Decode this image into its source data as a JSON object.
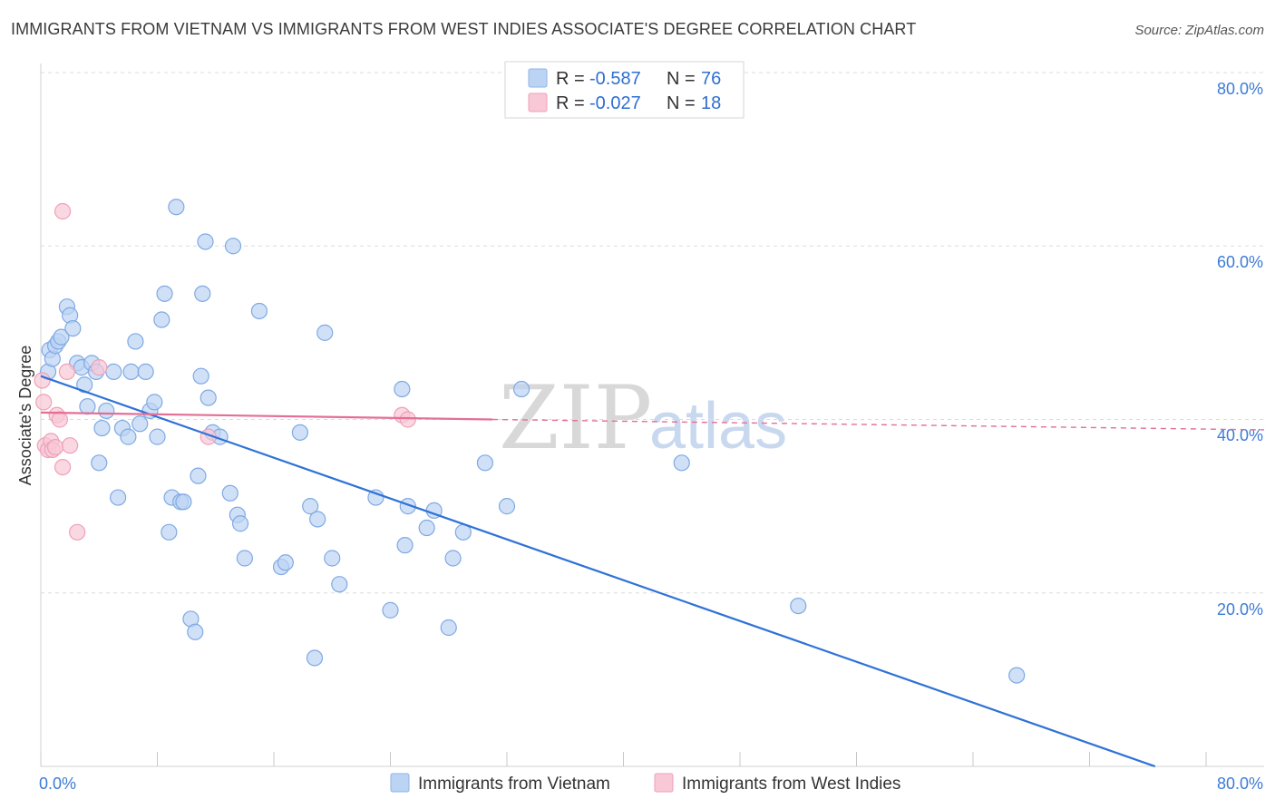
{
  "header": {
    "title": "IMMIGRANTS FROM VIETNAM VS IMMIGRANTS FROM WEST INDIES ASSOCIATE'S DEGREE CORRELATION CHART",
    "source": "Source: ZipAtlas.com"
  },
  "watermark": {
    "zip": "ZIP",
    "atlas": "atlas"
  },
  "legend": {
    "rows": [
      {
        "r_label": "R =",
        "r_value": "-0.587",
        "n_label": "N =",
        "n_value": "76",
        "color": "#a9c8f0"
      },
      {
        "r_label": "R =",
        "r_value": "-0.027",
        "n_label": "N =",
        "n_value": "18",
        "color": "#f6b8c9"
      }
    ]
  },
  "bottom_legend": [
    "Immigrants from Vietnam",
    "Immigrants from West Indies"
  ],
  "chart_data": {
    "type": "scatter",
    "title": "IMMIGRANTS FROM VIETNAM VS IMMIGRANTS FROM WEST INDIES ASSOCIATE'S DEGREE CORRELATION CHART",
    "xlabel": "",
    "ylabel": "Associate's Degree",
    "xlim": [
      0,
      80
    ],
    "ylim": [
      0,
      80
    ],
    "x_tick_labels": [
      "0.0%",
      "80.0%"
    ],
    "y_tick_values": [
      20,
      40,
      60,
      80
    ],
    "y_tick_labels": [
      "20.0%",
      "40.0%",
      "60.0%",
      "80.0%"
    ],
    "colors": {
      "vietnam": "#2f72d6",
      "west_indies": "#e36f97",
      "vietnam_fill": "#bcd4f3",
      "west_indies_fill": "#f8c8d6"
    },
    "series": [
      {
        "name": "Immigrants from Vietnam",
        "R": -0.587,
        "N": 76,
        "trend": {
          "x": [
            0,
            76.5
          ],
          "y": [
            45.0,
            0.0
          ]
        },
        "points": [
          [
            0.5,
            45.5
          ],
          [
            0.6,
            48.0
          ],
          [
            0.8,
            47.0
          ],
          [
            1.0,
            48.5
          ],
          [
            1.2,
            49.0
          ],
          [
            1.4,
            49.5
          ],
          [
            1.8,
            53.0
          ],
          [
            2.0,
            52.0
          ],
          [
            2.2,
            50.5
          ],
          [
            2.5,
            46.5
          ],
          [
            2.8,
            46.0
          ],
          [
            3.0,
            44.0
          ],
          [
            3.2,
            41.5
          ],
          [
            3.5,
            46.5
          ],
          [
            3.8,
            45.5
          ],
          [
            4.0,
            35.0
          ],
          [
            4.2,
            39.0
          ],
          [
            4.5,
            41.0
          ],
          [
            5.0,
            45.5
          ],
          [
            5.3,
            31.0
          ],
          [
            5.6,
            39.0
          ],
          [
            6.0,
            38.0
          ],
          [
            6.2,
            45.5
          ],
          [
            6.5,
            49.0
          ],
          [
            6.8,
            39.5
          ],
          [
            7.2,
            45.5
          ],
          [
            7.5,
            41.0
          ],
          [
            7.8,
            42.0
          ],
          [
            8.0,
            38.0
          ],
          [
            8.3,
            51.5
          ],
          [
            8.5,
            54.5
          ],
          [
            8.8,
            27.0
          ],
          [
            9.0,
            31.0
          ],
          [
            9.3,
            64.5
          ],
          [
            9.6,
            30.5
          ],
          [
            9.8,
            30.5
          ],
          [
            10.3,
            17.0
          ],
          [
            10.6,
            15.5
          ],
          [
            10.8,
            33.5
          ],
          [
            11.1,
            54.5
          ],
          [
            11.3,
            60.5
          ],
          [
            11.5,
            42.5
          ],
          [
            11.8,
            38.5
          ],
          [
            12.3,
            38.0
          ],
          [
            13.0,
            31.5
          ],
          [
            13.2,
            60.0
          ],
          [
            13.5,
            29.0
          ],
          [
            13.7,
            28.0
          ],
          [
            14.0,
            24.0
          ],
          [
            15.0,
            52.5
          ],
          [
            16.5,
            23.0
          ],
          [
            16.8,
            23.5
          ],
          [
            17.8,
            38.5
          ],
          [
            18.5,
            30.0
          ],
          [
            18.8,
            12.5
          ],
          [
            19.0,
            28.5
          ],
          [
            19.5,
            50.0
          ],
          [
            20.0,
            24.0
          ],
          [
            20.5,
            21.0
          ],
          [
            23.0,
            31.0
          ],
          [
            24.0,
            18.0
          ],
          [
            24.8,
            43.5
          ],
          [
            25.0,
            25.5
          ],
          [
            25.2,
            30.0
          ],
          [
            26.5,
            27.5
          ],
          [
            27.0,
            29.5
          ],
          [
            28.0,
            16.0
          ],
          [
            28.3,
            24.0
          ],
          [
            29.0,
            27.0
          ],
          [
            30.5,
            35.0
          ],
          [
            32.0,
            30.0
          ],
          [
            33.0,
            43.5
          ],
          [
            44.0,
            35.0
          ],
          [
            52.0,
            18.5
          ],
          [
            67.0,
            10.5
          ],
          [
            11.0,
            45.0
          ]
        ]
      },
      {
        "name": "Immigrants from West Indies",
        "R": -0.027,
        "N": 18,
        "trend": {
          "x": [
            0,
            31
          ],
          "y": [
            40.8,
            40.0
          ],
          "dashed_to": {
            "x": 80,
            "y": 38.8
          }
        },
        "points": [
          [
            0.1,
            44.5
          ],
          [
            0.2,
            42.0
          ],
          [
            0.3,
            37.0
          ],
          [
            0.5,
            36.5
          ],
          [
            0.7,
            37.5
          ],
          [
            0.8,
            36.5
          ],
          [
            1.0,
            36.8
          ],
          [
            1.1,
            40.5
          ],
          [
            1.3,
            40.0
          ],
          [
            1.5,
            34.5
          ],
          [
            1.5,
            64.0
          ],
          [
            1.8,
            45.5
          ],
          [
            2.0,
            37.0
          ],
          [
            2.5,
            27.0
          ],
          [
            4.0,
            46.0
          ],
          [
            11.5,
            38.0
          ],
          [
            24.8,
            40.5
          ],
          [
            25.2,
            40.0
          ]
        ]
      }
    ]
  }
}
